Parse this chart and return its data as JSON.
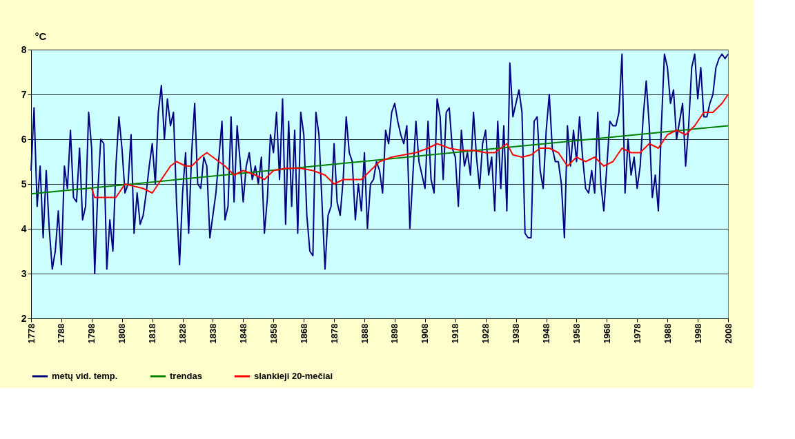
{
  "chart_data": {
    "type": "line",
    "ylabel": "°C",
    "xlim": [
      1778,
      2008
    ],
    "ylim": [
      2,
      8
    ],
    "xticks": [
      1778,
      1788,
      1798,
      1808,
      1818,
      1828,
      1838,
      1848,
      1858,
      1868,
      1878,
      1888,
      1898,
      1908,
      1918,
      1928,
      1938,
      1948,
      1958,
      1968,
      1978,
      1988,
      1998,
      2008
    ],
    "yticks": [
      2,
      3,
      4,
      5,
      6,
      7,
      8
    ],
    "grid": "y",
    "legend": "bottom",
    "line_style": "solid",
    "marker": "none",
    "series": [
      {
        "name": "metų vid. temp.",
        "color": "#000080",
        "x": [
          1778,
          1779,
          1780,
          1781,
          1782,
          1783,
          1784,
          1785,
          1786,
          1787,
          1788,
          1789,
          1790,
          1791,
          1792,
          1793,
          1794,
          1795,
          1796,
          1797,
          1798,
          1799,
          1800,
          1801,
          1802,
          1803,
          1804,
          1805,
          1806,
          1807,
          1808,
          1809,
          1810,
          1811,
          1812,
          1813,
          1814,
          1815,
          1816,
          1817,
          1818,
          1819,
          1820,
          1821,
          1822,
          1823,
          1824,
          1825,
          1826,
          1827,
          1828,
          1829,
          1830,
          1831,
          1832,
          1833,
          1834,
          1835,
          1836,
          1837,
          1838,
          1839,
          1840,
          1841,
          1842,
          1843,
          1844,
          1845,
          1846,
          1847,
          1848,
          1849,
          1850,
          1851,
          1852,
          1853,
          1854,
          1855,
          1856,
          1857,
          1858,
          1859,
          1860,
          1861,
          1862,
          1863,
          1864,
          1865,
          1866,
          1867,
          1868,
          1869,
          1870,
          1871,
          1872,
          1873,
          1874,
          1875,
          1876,
          1877,
          1878,
          1879,
          1880,
          1881,
          1882,
          1883,
          1884,
          1885,
          1886,
          1887,
          1888,
          1889,
          1890,
          1891,
          1892,
          1893,
          1894,
          1895,
          1896,
          1897,
          1898,
          1899,
          1900,
          1901,
          1902,
          1903,
          1904,
          1905,
          1906,
          1907,
          1908,
          1909,
          1910,
          1911,
          1912,
          1913,
          1914,
          1915,
          1916,
          1917,
          1918,
          1919,
          1920,
          1921,
          1922,
          1923,
          1924,
          1925,
          1926,
          1927,
          1928,
          1929,
          1930,
          1931,
          1932,
          1933,
          1934,
          1935,
          1936,
          1937,
          1938,
          1939,
          1940,
          1941,
          1942,
          1943,
          1944,
          1945,
          1946,
          1947,
          1948,
          1949,
          1950,
          1951,
          1952,
          1953,
          1954,
          1955,
          1956,
          1957,
          1958,
          1959,
          1960,
          1961,
          1962,
          1963,
          1964,
          1965,
          1966,
          1967,
          1968,
          1969,
          1970,
          1971,
          1972,
          1973,
          1974,
          1975,
          1976,
          1977,
          1978,
          1979,
          1980,
          1981,
          1982,
          1983,
          1984,
          1985,
          1986,
          1987,
          1988,
          1989,
          1990,
          1991,
          1992,
          1993,
          1994,
          1995,
          1996,
          1997,
          1998,
          1999,
          2000,
          2001,
          2002,
          2003,
          2004,
          2005,
          2006,
          2007,
          2008
        ],
        "values": [
          5.3,
          6.7,
          4.5,
          5.4,
          3.8,
          5.3,
          4.0,
          3.1,
          3.5,
          4.4,
          3.2,
          5.4,
          4.9,
          6.2,
          4.7,
          4.6,
          5.8,
          4.2,
          4.5,
          6.6,
          5.8,
          3.0,
          4.8,
          6.0,
          5.9,
          3.1,
          4.2,
          3.5,
          5.4,
          6.5,
          5.8,
          4.8,
          5.0,
          6.1,
          3.9,
          4.8,
          4.1,
          4.3,
          4.8,
          5.4,
          5.9,
          5.0,
          6.6,
          7.2,
          6.0,
          6.9,
          6.3,
          6.6,
          4.6,
          3.2,
          4.8,
          5.7,
          3.9,
          5.7,
          6.8,
          5.0,
          4.9,
          5.6,
          5.4,
          3.8,
          4.3,
          4.8,
          5.6,
          6.4,
          4.2,
          4.5,
          6.5,
          4.6,
          6.3,
          5.5,
          4.6,
          5.4,
          5.7,
          5.1,
          5.4,
          5.0,
          5.6,
          3.9,
          4.7,
          6.1,
          5.7,
          6.6,
          5.1,
          6.9,
          4.1,
          6.4,
          4.5,
          6.2,
          3.9,
          6.6,
          6.1,
          4.3,
          3.5,
          3.4,
          6.6,
          6.1,
          4.6,
          3.1,
          4.3,
          4.5,
          5.9,
          4.6,
          4.3,
          5.1,
          6.5,
          5.7,
          5.5,
          4.2,
          5.0,
          4.4,
          5.7,
          4.0,
          5.0,
          5.1,
          5.5,
          5.3,
          4.8,
          6.2,
          5.9,
          6.6,
          6.8,
          6.4,
          6.1,
          5.9,
          6.3,
          4.0,
          5.2,
          6.4,
          5.5,
          5.2,
          4.9,
          6.4,
          5.1,
          4.8,
          6.9,
          6.5,
          5.1,
          6.6,
          6.7,
          5.8,
          5.6,
          4.5,
          6.2,
          5.4,
          5.7,
          5.2,
          6.6,
          5.6,
          4.9,
          5.9,
          6.2,
          5.2,
          5.6,
          4.4,
          6.4,
          4.9,
          6.3,
          4.4,
          7.7,
          6.5,
          6.8,
          7.1,
          6.6,
          3.9,
          3.8,
          3.8,
          6.4,
          6.5,
          5.3,
          4.9,
          6.2,
          7.0,
          5.8,
          5.5,
          5.5,
          5.0,
          3.8,
          6.3,
          5.4,
          6.2,
          5.5,
          6.5,
          5.6,
          4.9,
          4.8,
          5.3,
          4.8,
          6.6,
          5.0,
          4.4,
          5.4,
          6.4,
          6.3,
          6.3,
          6.6,
          7.9,
          4.8,
          6.0,
          5.2,
          5.6,
          4.9,
          5.4,
          6.5,
          7.3,
          6.3,
          4.7,
          5.2,
          4.4,
          6.3,
          7.9,
          7.6,
          6.8,
          7.1,
          6.0,
          6.4,
          6.8,
          5.4,
          6.3,
          7.6,
          7.9,
          6.9,
          7.6,
          6.5,
          6.5,
          6.8,
          7.0,
          7.6,
          7.8,
          7.9,
          7.8,
          7.9
        ]
      },
      {
        "name": "trendas",
        "color": "#008000",
        "x": [
          1778,
          2008
        ],
        "values": [
          4.78,
          6.3
        ]
      },
      {
        "name": "slankieji 20-mečiai",
        "color": "#ff0000",
        "x": [
          1798,
          1799,
          1803,
          1806,
          1809,
          1815,
          1818,
          1820,
          1824,
          1826,
          1829,
          1831,
          1834,
          1836,
          1838,
          1842,
          1845,
          1848,
          1852,
          1855,
          1858,
          1862,
          1867,
          1871,
          1875,
          1878,
          1881,
          1884,
          1887,
          1890,
          1893,
          1897,
          1901,
          1905,
          1909,
          1912,
          1916,
          1920,
          1924,
          1928,
          1931,
          1935,
          1937,
          1940,
          1943,
          1946,
          1949,
          1952,
          1955,
          1958,
          1961,
          1964,
          1967,
          1970,
          1973,
          1976,
          1979,
          1982,
          1985,
          1988,
          1991,
          1994,
          1997,
          2000,
          2003,
          2006,
          2008
        ],
        "values": [
          4.9,
          4.7,
          4.7,
          4.7,
          5.0,
          4.9,
          4.8,
          5.0,
          5.4,
          5.5,
          5.4,
          5.4,
          5.6,
          5.7,
          5.6,
          5.4,
          5.2,
          5.3,
          5.2,
          5.1,
          5.3,
          5.35,
          5.35,
          5.3,
          5.2,
          5.0,
          5.1,
          5.1,
          5.1,
          5.3,
          5.5,
          5.6,
          5.65,
          5.7,
          5.8,
          5.9,
          5.8,
          5.75,
          5.75,
          5.7,
          5.7,
          5.9,
          5.65,
          5.6,
          5.65,
          5.8,
          5.8,
          5.7,
          5.4,
          5.6,
          5.5,
          5.6,
          5.4,
          5.5,
          5.8,
          5.7,
          5.7,
          5.9,
          5.8,
          6.1,
          6.2,
          6.1,
          6.3,
          6.6,
          6.6,
          6.8,
          7.0
        ]
      }
    ]
  }
}
